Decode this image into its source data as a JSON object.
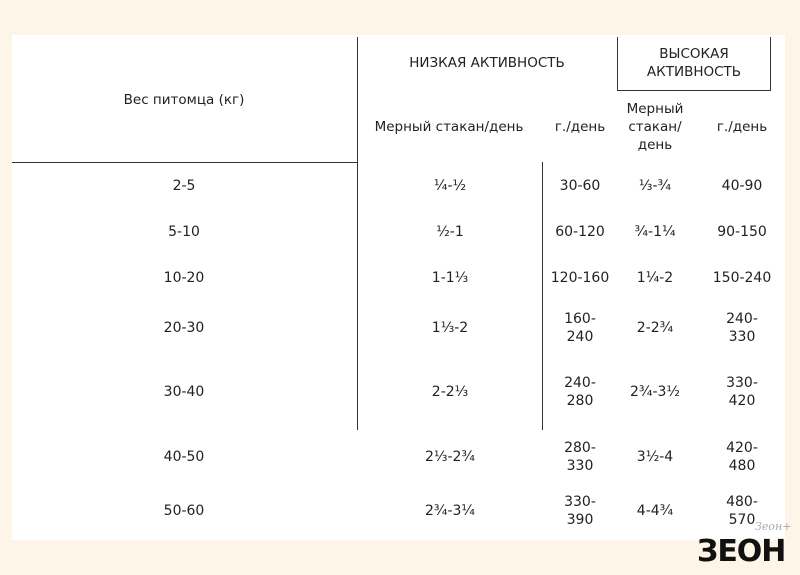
{
  "table": {
    "header": {
      "weight": "Вес питомца (кг)",
      "low": "НИЗКАЯ АКТИВНОСТЬ",
      "high": "ВЫСОКАЯ АКТИВНОСТЬ",
      "low_cup": "Мерный стакан/день",
      "low_g": "г./день",
      "high_cup": "Мерный стакан/ день",
      "high_g": "г./день"
    },
    "rows": [
      [
        "2-5",
        "¼-½",
        "30-60",
        "⅓-¾",
        "40-90"
      ],
      [
        "5-10",
        "½-1",
        "60-120",
        "¾-1¼",
        "90-150"
      ],
      [
        "10-20",
        "1-1⅓",
        "120-160",
        "1¼-2",
        "150-240"
      ],
      [
        "20-30",
        "1⅓-2",
        "160-240",
        "2-2¾",
        "240-330"
      ],
      [
        "30-40",
        "2-2⅓",
        "240-280",
        "2¾-3½",
        "330-420"
      ],
      [
        "40-50",
        "2⅓-2¾",
        "280-330",
        "3½-4",
        "420-480"
      ],
      [
        "50-60",
        "2¾-3¼",
        "330-390",
        "4-4¾",
        "480-570"
      ]
    ]
  },
  "logo": "ЗЕОН",
  "watermark": "Зеон+"
}
